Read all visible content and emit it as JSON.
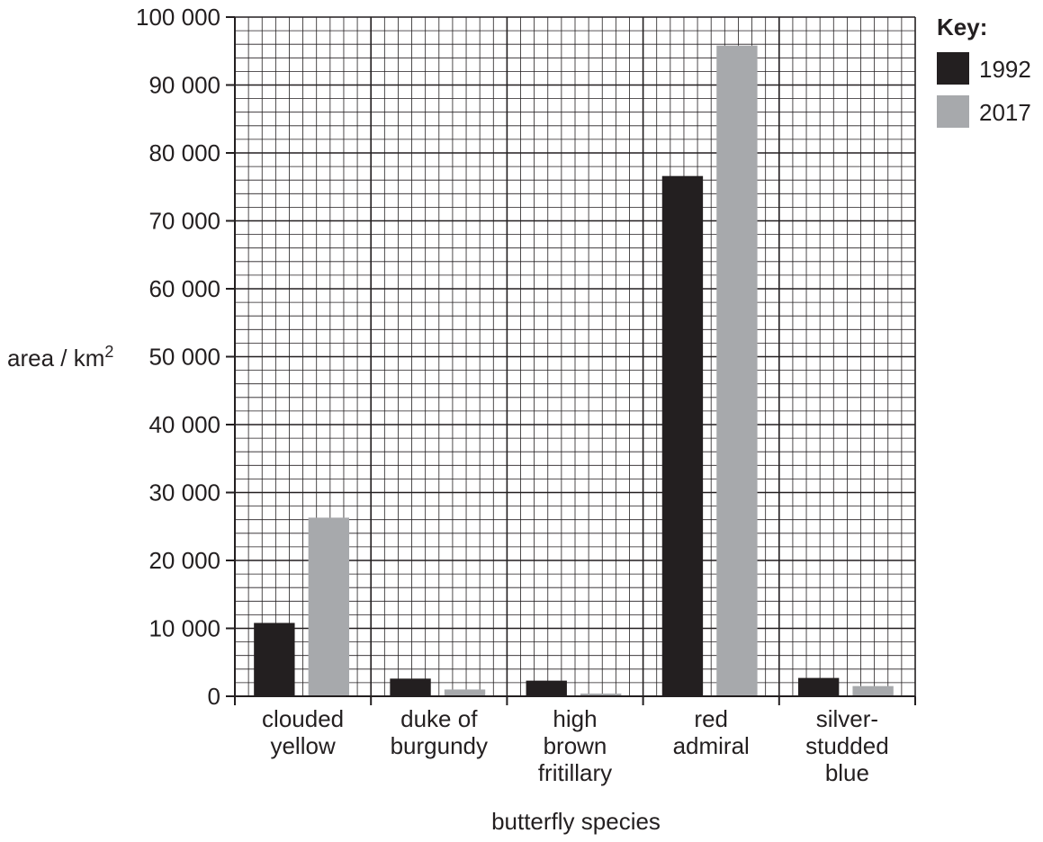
{
  "chart_data": {
    "type": "bar",
    "xlabel": "butterfly species",
    "ylabel": "area / km",
    "ylabel_superscript": "2",
    "categories": [
      [
        "clouded",
        "yellow"
      ],
      [
        "duke of",
        "burgundy"
      ],
      [
        "high",
        "brown",
        "fritillary"
      ],
      [
        "red",
        "admiral"
      ],
      [
        "silver-",
        "studded",
        "blue"
      ]
    ],
    "series": [
      {
        "name": "1992",
        "color": "#231f20",
        "values": [
          10800,
          2600,
          2300,
          76600,
          2700
        ]
      },
      {
        "name": "2017",
        "color": "#a7a9ac",
        "values": [
          26300,
          1000,
          400,
          95800,
          1500
        ]
      }
    ],
    "ylim": [
      0,
      100000
    ],
    "yticks": [
      0,
      10000,
      20000,
      30000,
      40000,
      50000,
      60000,
      70000,
      80000,
      90000,
      100000
    ],
    "ytick_labels": [
      "0",
      "10 000",
      "20 000",
      "30 000",
      "40 000",
      "50 000",
      "60 000",
      "70 000",
      "80 000",
      "90 000",
      "100 000"
    ],
    "grid": true,
    "legend": {
      "title": "Key:",
      "position": "top-right"
    }
  }
}
